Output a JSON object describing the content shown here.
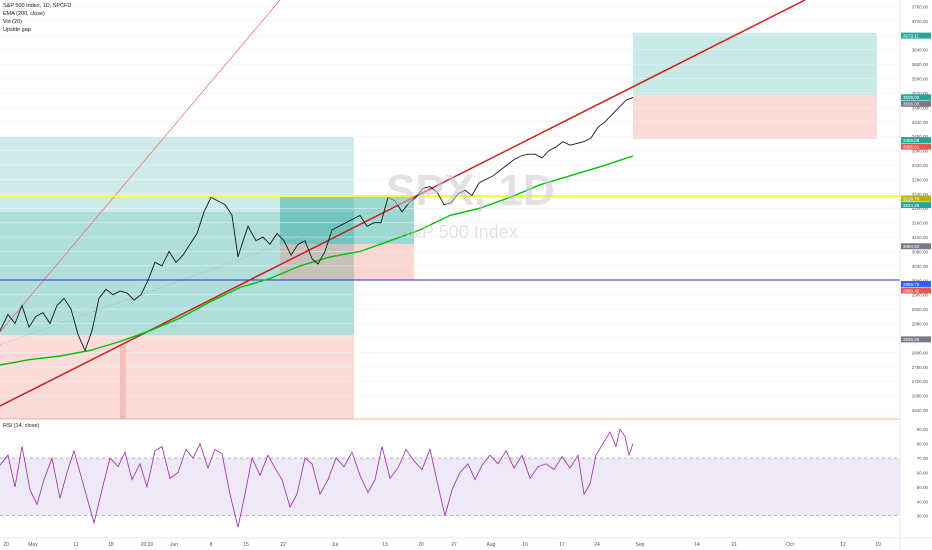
{
  "legend": {
    "symbol": "S&P 500 Index, 1D, SPCFD",
    "ema": "EMA (200, close)",
    "vol": "Vol (20)",
    "gap": "Upside gap"
  },
  "watermark": {
    "ticker": "SPX, 1D",
    "name": "S&P 500 Index"
  },
  "rsi_label": "RSI (14, close)",
  "chart_data": [
    {
      "type": "candlestick",
      "series": [
        {
          "name": "S&P 500 Index, 1D, SPCFD",
          "kind": "price"
        },
        {
          "name": "EMA (200, close)",
          "kind": "line",
          "color": "#00c000"
        }
      ],
      "y_axis_ticks": [
        2640,
        2680,
        2720,
        2760,
        2800,
        2840,
        2880,
        2920,
        2960,
        3000,
        3040,
        3080,
        3120,
        3160,
        3200,
        3240,
        3280,
        3320,
        3360,
        3400,
        3440,
        3480,
        3520,
        3560,
        3600,
        3640,
        3680,
        3720,
        3760
      ],
      "y_axis_labels": [
        "2640.00",
        "2680.00",
        "2720.00",
        "2760.00",
        "2800.00",
        "2840.00",
        "2880.00",
        "2920.00",
        "2960.00",
        "3000.00",
        "3040.00",
        "3080.00",
        "3120.00",
        "3160.00",
        "3200.00",
        "3240.00",
        "3280.00",
        "3320.00",
        "3360.00",
        "3400.00",
        "3440.00",
        "3480.00",
        "3520.00",
        "3560.00",
        "3600.00",
        "3640.00",
        "3680.00",
        "3720.00",
        "3760.00"
      ],
      "ylim": [
        2615,
        3778
      ],
      "x_ticks": [
        "20",
        "May",
        "11",
        "18",
        "20:30",
        "Jun",
        "8",
        "15",
        "22",
        "Jul",
        "13",
        "20",
        "27",
        "Aug",
        "10",
        "17",
        "24",
        "Sep",
        "14",
        "21",
        "Oct",
        "12",
        "19"
      ],
      "price_labels": [
        {
          "text": "3679.11",
          "value": 3679.11,
          "color": "#26a69a"
        },
        {
          "text": "3508.00",
          "value": 3508,
          "color": "#26a69a"
        },
        {
          "text": "3506.00",
          "value": 3506,
          "color": "#787b86"
        },
        {
          "text": "3389.09",
          "value": 3389.09,
          "color": "#26a69a"
        },
        {
          "text": "3385.51",
          "value": 3385.51,
          "color": "#ef5350"
        },
        {
          "text": "3226.75",
          "value": 3226.75,
          "color": "#b5b500"
        },
        {
          "text": "3224.26",
          "value": 3224.26,
          "color": "#26a69a"
        },
        {
          "text": "3094.50",
          "value": 3094.5,
          "color": "#787b86"
        },
        {
          "text": "2989.79",
          "value": 2989.79,
          "color": "#2962ff"
        },
        {
          "text": "2980.42",
          "value": 2980.42,
          "color": "#ef5350"
        },
        {
          "text": "2836.00",
          "value": 2836,
          "color": "#787b86"
        }
      ],
      "horizontal_lines": [
        {
          "value": 3226.75,
          "color": "#ffff33"
        },
        {
          "value": 2989.79,
          "color": "#2a2ad0"
        }
      ],
      "close_path": [
        [
          2860,
          0
        ],
        [
          2905,
          8
        ],
        [
          2880,
          15
        ],
        [
          2930,
          22
        ],
        [
          2870,
          29
        ],
        [
          2900,
          36
        ],
        [
          2910,
          43
        ],
        [
          2880,
          50
        ],
        [
          2930,
          57
        ],
        [
          2950,
          64
        ],
        [
          2920,
          71
        ],
        [
          2850,
          78
        ],
        [
          2805,
          85
        ],
        [
          2860,
          92
        ],
        [
          2950,
          99
        ],
        [
          2975,
          106
        ],
        [
          2960,
          113
        ],
        [
          2970,
          120
        ],
        [
          2965,
          127
        ],
        [
          2945,
          134
        ],
        [
          2960,
          141
        ],
        [
          3000,
          148
        ],
        [
          3050,
          155
        ],
        [
          3040,
          162
        ],
        [
          3080,
          169
        ],
        [
          3050,
          176
        ],
        [
          3070,
          183
        ],
        [
          3100,
          190
        ],
        [
          3130,
          197
        ],
        [
          3190,
          204
        ],
        [
          3230,
          211
        ],
        [
          3220,
          218
        ],
        [
          3210,
          225
        ],
        [
          3180,
          232
        ],
        [
          3065,
          238
        ],
        [
          3100,
          242
        ],
        [
          3150,
          248
        ],
        [
          3110,
          256
        ],
        [
          3120,
          263
        ],
        [
          3100,
          270
        ],
        [
          3130,
          277
        ],
        [
          3110,
          284
        ],
        [
          3070,
          291
        ],
        [
          3100,
          298
        ],
        [
          3110,
          305
        ],
        [
          3060,
          312
        ],
        [
          3045,
          318
        ],
        [
          3080,
          325
        ],
        [
          3140,
          332
        ],
        [
          3150,
          339
        ],
        [
          3160,
          346
        ],
        [
          3170,
          353
        ],
        [
          3180,
          360
        ],
        [
          3150,
          367
        ],
        [
          3160,
          374
        ],
        [
          3160,
          381
        ],
        [
          3230,
          388
        ],
        [
          3220,
          395
        ],
        [
          3190,
          402
        ],
        [
          3215,
          409
        ],
        [
          3230,
          416
        ],
        [
          3255,
          423
        ],
        [
          3260,
          430
        ],
        [
          3245,
          437
        ],
        [
          3210,
          444
        ],
        [
          3215,
          451
        ],
        [
          3240,
          458
        ],
        [
          3250,
          465
        ],
        [
          3235,
          472
        ],
        [
          3270,
          479
        ],
        [
          3280,
          486
        ],
        [
          3290,
          493
        ],
        [
          3305,
          500
        ],
        [
          3320,
          507
        ],
        [
          3335,
          514
        ],
        [
          3345,
          521
        ],
        [
          3350,
          528
        ],
        [
          3350,
          535
        ],
        [
          3340,
          542
        ],
        [
          3360,
          549
        ],
        [
          3370,
          556
        ],
        [
          3385,
          563
        ],
        [
          3375,
          570
        ],
        [
          3380,
          577
        ],
        [
          3385,
          584
        ],
        [
          3395,
          591
        ],
        [
          3425,
          598
        ],
        [
          3440,
          605
        ],
        [
          3460,
          612
        ],
        [
          3480,
          619
        ],
        [
          3500,
          626
        ],
        [
          3508,
          633
        ]
      ],
      "ema_path": [
        [
          2765,
          0
        ],
        [
          2780,
          30
        ],
        [
          2790,
          60
        ],
        [
          2805,
          90
        ],
        [
          2830,
          120
        ],
        [
          2860,
          150
        ],
        [
          2895,
          180
        ],
        [
          2940,
          210
        ],
        [
          2980,
          240
        ],
        [
          3005,
          270
        ],
        [
          3040,
          300
        ],
        [
          3065,
          330
        ],
        [
          3080,
          360
        ],
        [
          3110,
          390
        ],
        [
          3140,
          420
        ],
        [
          3180,
          450
        ],
        [
          3200,
          480
        ],
        [
          3230,
          510
        ],
        [
          3265,
          540
        ],
        [
          3290,
          570
        ],
        [
          3315,
          600
        ],
        [
          3345,
          633
        ]
      ],
      "rsi": {
        "y_ticks": [
          30,
          40,
          50,
          60,
          70,
          80,
          90
        ],
        "y_labels": [
          "30.00",
          "40.00",
          "50.00",
          "60.00",
          "70.00",
          "80.00",
          "90.00"
        ],
        "band": [
          30,
          70
        ],
        "ylim": [
          18,
          95
        ],
        "path": [
          [
            65,
            0
          ],
          [
            72,
            8
          ],
          [
            50,
            15
          ],
          [
            78,
            22
          ],
          [
            48,
            30
          ],
          [
            38,
            37
          ],
          [
            55,
            44
          ],
          [
            70,
            52
          ],
          [
            42,
            60
          ],
          [
            60,
            67
          ],
          [
            75,
            74
          ],
          [
            55,
            82
          ],
          [
            40,
            88
          ],
          [
            25,
            94
          ],
          [
            48,
            102
          ],
          [
            70,
            110
          ],
          [
            64,
            118
          ],
          [
            74,
            125
          ],
          [
            55,
            132
          ],
          [
            66,
            140
          ],
          [
            50,
            147
          ],
          [
            75,
            155
          ],
          [
            78,
            162
          ],
          [
            56,
            170
          ],
          [
            60,
            178
          ],
          [
            76,
            186
          ],
          [
            70,
            193
          ],
          [
            80,
            200
          ],
          [
            63,
            208
          ],
          [
            76,
            215
          ],
          [
            73,
            222
          ],
          [
            45,
            230
          ],
          [
            22,
            238
          ],
          [
            45,
            245
          ],
          [
            70,
            252
          ],
          [
            58,
            260
          ],
          [
            72,
            268
          ],
          [
            63,
            275
          ],
          [
            55,
            282
          ],
          [
            36,
            290
          ],
          [
            45,
            297
          ],
          [
            70,
            305
          ],
          [
            66,
            312
          ],
          [
            45,
            320
          ],
          [
            55,
            328
          ],
          [
            70,
            336
          ],
          [
            64,
            344
          ],
          [
            74,
            352
          ],
          [
            58,
            360
          ],
          [
            46,
            368
          ],
          [
            55,
            375
          ],
          [
            78,
            382
          ],
          [
            56,
            390
          ],
          [
            63,
            398
          ],
          [
            76,
            406
          ],
          [
            68,
            414
          ],
          [
            62,
            422
          ],
          [
            76,
            430
          ],
          [
            54,
            437
          ],
          [
            30,
            445
          ],
          [
            48,
            452
          ],
          [
            60,
            460
          ],
          [
            66,
            468
          ],
          [
            55,
            475
          ],
          [
            65,
            482
          ],
          [
            72,
            490
          ],
          [
            66,
            498
          ],
          [
            75,
            506
          ],
          [
            63,
            514
          ],
          [
            72,
            522
          ],
          [
            56,
            530
          ],
          [
            64,
            538
          ],
          [
            66,
            546
          ],
          [
            62,
            554
          ],
          [
            71,
            562
          ],
          [
            63,
            570
          ],
          [
            72,
            578
          ],
          [
            45,
            584
          ],
          [
            52,
            590
          ],
          [
            72,
            596
          ],
          [
            80,
            603
          ],
          [
            88,
            610
          ],
          [
            78,
            616
          ],
          [
            90,
            620
          ],
          [
            85,
            625
          ],
          [
            72,
            629
          ],
          [
            80,
            633
          ]
        ]
      }
    }
  ]
}
